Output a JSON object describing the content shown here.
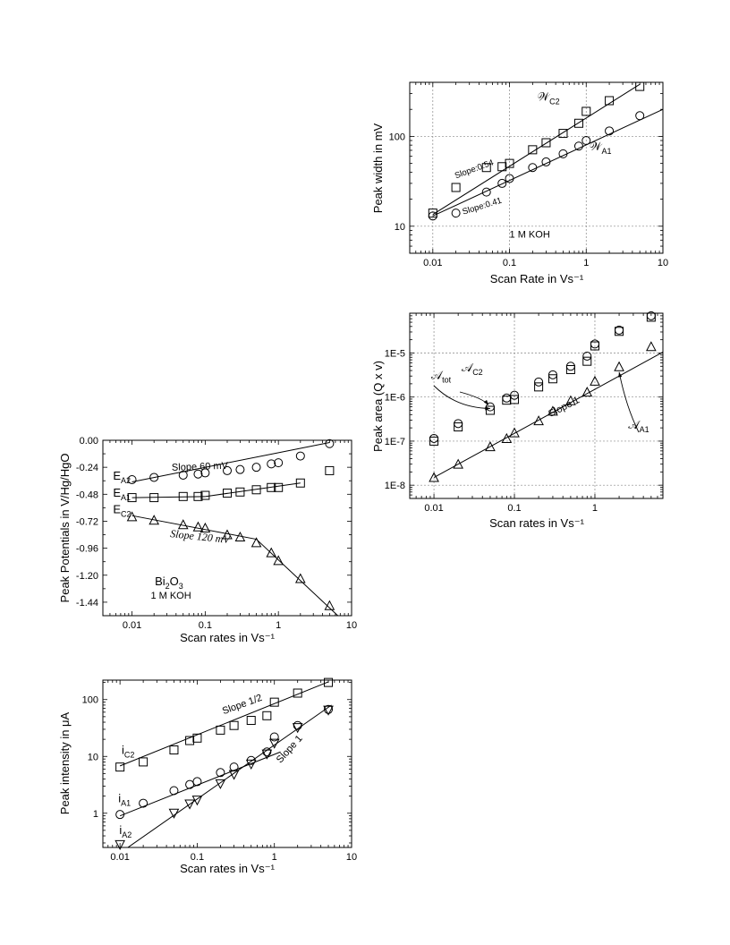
{
  "chart_data": [
    {
      "id": "A",
      "type": "scatter",
      "xscale": "log",
      "yscale": "log",
      "xlim": [
        0.005,
        10
      ],
      "ylim": [
        5,
        400
      ],
      "xticks": [
        0.01,
        0.1,
        1,
        10
      ],
      "xtick_labels": [
        "0.01",
        "0.1",
        "1",
        "10"
      ],
      "yticks": [
        10,
        100
      ],
      "ytick_labels": [
        "10",
        "100"
      ],
      "grid": true,
      "xlabel": "Scan Rate in Vs⁻¹",
      "ylabel": "Peak width in mV",
      "series": [
        {
          "name": "𝒲C2",
          "marker": "square",
          "x": [
            0.01,
            0.02,
            0.05,
            0.08,
            0.1,
            0.2,
            0.3,
            0.5,
            0.8,
            1,
            2,
            5
          ],
          "y": [
            14,
            27,
            45,
            46,
            50,
            71,
            85,
            108,
            140,
            190,
            250,
            360
          ]
        },
        {
          "name": "𝒲A1",
          "marker": "circle",
          "x": [
            0.01,
            0.02,
            0.05,
            0.08,
            0.1,
            0.2,
            0.3,
            0.5,
            0.8,
            1,
            2,
            5
          ],
          "y": [
            13,
            14,
            24,
            30,
            34,
            45,
            52,
            64,
            78,
            90,
            115,
            170
          ]
        }
      ],
      "fits": [
        {
          "x": [
            0.01,
            5
          ],
          "y": [
            13.5,
            380
          ]
        },
        {
          "x": [
            0.01,
            10
          ],
          "y": [
            13,
            200
          ]
        }
      ],
      "annotations": [
        {
          "text": "Slope:0.54",
          "x": 0.02,
          "y": 34,
          "rot": -20,
          "cls": "ann-sm"
        },
        {
          "text": "Slope:0.41",
          "x": 0.025,
          "y": 13.5,
          "rot": -17,
          "cls": "ann-sm"
        },
        {
          "text": "1 M KOH",
          "x": 0.1,
          "y": 7.5,
          "rot": 0,
          "cls": "ann"
        }
      ],
      "labels": [
        {
          "main": "𝒲",
          "sub": "C2",
          "x": 0.23,
          "y": 250
        },
        {
          "main": "𝒲",
          "sub": "A1",
          "x": 1.1,
          "y": 70
        }
      ]
    },
    {
      "id": "B",
      "type": "scatter",
      "xscale": "log",
      "yscale": "log",
      "xlim": [
        0.005,
        7
      ],
      "ylim": [
        5e-09,
        8e-05
      ],
      "xticks": [
        0.01,
        0.1,
        1
      ],
      "xtick_labels": [
        "0.01",
        "0.1",
        "1"
      ],
      "yticks": [
        1e-08,
        1e-07,
        1e-06,
        1e-05
      ],
      "ytick_labels": [
        "1E-8",
        "1E-7",
        "1E-6",
        "1E-5"
      ],
      "grid": true,
      "xlabel": "Scan rates in Vs⁻¹",
      "ylabel": "Peak area (Q x v)",
      "series": [
        {
          "name": "𝒜tot",
          "marker": "circle",
          "x": [
            0.01,
            0.02,
            0.05,
            0.08,
            0.1,
            0.2,
            0.3,
            0.5,
            0.8,
            1,
            2,
            5
          ],
          "y": [
            1.15e-07,
            2.5e-07,
            6e-07,
            9.5e-07,
            1.1e-06,
            2.2e-06,
            3.2e-06,
            5e-06,
            8.5e-06,
            1.6e-05,
            3.3e-05,
            7e-05
          ]
        },
        {
          "name": "𝒜C2",
          "marker": "square",
          "x": [
            0.01,
            0.02,
            0.05,
            0.08,
            0.1,
            0.2,
            0.3,
            0.5,
            0.8,
            1,
            2,
            5
          ],
          "y": [
            1e-07,
            2.1e-07,
            5e-07,
            8.5e-07,
            8.8e-07,
            1.7e-06,
            2.6e-06,
            4.2e-06,
            6.5e-06,
            1.45e-05,
            3.1e-05,
            6.5e-05
          ]
        },
        {
          "name": "𝒜A1",
          "marker": "triangle",
          "x": [
            0.01,
            0.02,
            0.05,
            0.08,
            0.1,
            0.2,
            0.3,
            0.5,
            0.8,
            1,
            2,
            5
          ],
          "y": [
            1.5e-08,
            3e-08,
            7.5e-08,
            1.15e-07,
            1.55e-07,
            2.9e-07,
            4.8e-07,
            8.3e-07,
            1.3e-06,
            2.3e-06,
            4.9e-06,
            1.4e-05
          ]
        }
      ],
      "fits": [
        {
          "x": [
            0.01,
            7
          ],
          "y": [
            1.5e-08,
            1.05e-05
          ]
        }
      ],
      "annotations": [
        {
          "text": "Slope 1",
          "x": 0.28,
          "y": 3.5e-07,
          "rot": -27,
          "cls": "ann"
        }
      ],
      "labels": [
        {
          "main": "𝒜",
          "sub": "tot",
          "x": 0.0092,
          "y": 2.6e-06
        },
        {
          "main": "𝒜",
          "sub": "C2",
          "x": 0.022,
          "y": 3.8e-06
        },
        {
          "main": "𝒜",
          "sub": "A1",
          "x": 2.6,
          "y": 1.9e-07
        }
      ]
    },
    {
      "id": "C",
      "type": "scatter",
      "xscale": "log",
      "yscale": "linear",
      "xlim": [
        0.004,
        10
      ],
      "ylim": [
        -1.56,
        0
      ],
      "xticks": [
        0.01,
        0.1,
        1,
        10
      ],
      "xtick_labels": [
        "0.01",
        "0.1",
        "1",
        "10"
      ],
      "yticks": [
        0,
        -0.24,
        -0.48,
        -0.72,
        -0.96,
        -1.2,
        -1.44
      ],
      "ytick_labels": [
        "0.00",
        "-0.24",
        "-0.48",
        "-0.72",
        "-0.96",
        "-1.20",
        "-1.44"
      ],
      "grid": false,
      "xlabel": "Scan rates in Vs⁻¹",
      "ylabel": "Peak Potentials in V/Hg/HgO",
      "series": [
        {
          "name": "EA2",
          "marker": "circle",
          "x": [
            0.01,
            0.02,
            0.05,
            0.08,
            0.1,
            0.2,
            0.3,
            0.5,
            0.8,
            1,
            2,
            5
          ],
          "y": [
            -0.35,
            -0.33,
            -0.31,
            -0.3,
            -0.29,
            -0.27,
            -0.26,
            -0.24,
            -0.21,
            -0.2,
            -0.14,
            -0.03
          ]
        },
        {
          "name": "EA1",
          "marker": "square",
          "x": [
            0.01,
            0.02,
            0.05,
            0.08,
            0.1,
            0.2,
            0.3,
            0.5,
            0.8,
            1,
            2,
            5
          ],
          "y": [
            -0.51,
            -0.51,
            -0.5,
            -0.5,
            -0.49,
            -0.47,
            -0.46,
            -0.44,
            -0.42,
            -0.42,
            -0.38,
            -0.27
          ]
        },
        {
          "name": "EC2",
          "marker": "triangle",
          "x": [
            0.01,
            0.02,
            0.05,
            0.08,
            0.1,
            0.2,
            0.3,
            0.5,
            0.8,
            1,
            2,
            5
          ],
          "y": [
            -0.68,
            -0.71,
            -0.75,
            -0.77,
            -0.78,
            -0.84,
            -0.86,
            -0.91,
            -1.0,
            -1.07,
            -1.23,
            -1.47
          ]
        }
      ],
      "fits": [
        {
          "x": [
            0.01,
            5
          ],
          "y": [
            -0.37,
            -0.02
          ]
        },
        {
          "x": [
            0.01,
            0.1
          ],
          "y": [
            -0.51,
            -0.5
          ]
        },
        {
          "x": [
            0.1,
            2
          ],
          "y": [
            -0.5,
            -0.38
          ]
        },
        {
          "x": [
            0.01,
            0.5
          ],
          "y": [
            -0.67,
            -0.88
          ]
        },
        {
          "x": [
            0.5,
            7
          ],
          "y": [
            -0.88,
            -1.58
          ]
        }
      ],
      "annotations": [
        {
          "text": "Slope 60 mV",
          "x": 0.035,
          "y": -0.27,
          "rot": -2,
          "cls": "ann"
        },
        {
          "text": "Slope 120 mV",
          "x": 0.033,
          "y": -0.86,
          "rot": 6,
          "cls": "ann-it"
        },
        {
          "text": "1 M KOH",
          "x": 0.018,
          "y": -1.41,
          "rot": 0,
          "cls": "ann"
        }
      ],
      "labels": [
        {
          "main": "E",
          "sub": "A2",
          "x": 0.0055,
          "y": -0.35
        },
        {
          "main": "E",
          "sub": "A1",
          "x": 0.0055,
          "y": -0.5
        },
        {
          "main": "E",
          "sub": "C2",
          "x": 0.0055,
          "y": -0.65
        },
        {
          "main": "Bi",
          "sub": "2",
          "tail": "O",
          "sub2": "3",
          "x": 0.0205,
          "y": -1.29
        }
      ]
    },
    {
      "id": "D",
      "type": "scatter",
      "xscale": "log",
      "yscale": "log",
      "xlim": [
        0.006,
        10
      ],
      "ylim": [
        0.25,
        220
      ],
      "xticks": [
        0.01,
        0.1,
        1,
        10
      ],
      "xtick_labels": [
        "0.01",
        "0.1",
        "1",
        "10"
      ],
      "yticks": [
        1,
        10,
        100
      ],
      "ytick_labels": [
        "1",
        "10",
        "100"
      ],
      "grid": false,
      "xlabel": "Scan rates in Vs⁻¹",
      "ylabel": "Peak intensity in μA",
      "series": [
        {
          "name": "iC2",
          "marker": "square",
          "x": [
            0.01,
            0.02,
            0.05,
            0.08,
            0.1,
            0.2,
            0.3,
            0.5,
            0.8,
            1,
            2,
            5
          ],
          "y": [
            6.5,
            8,
            13,
            19,
            21,
            29,
            35,
            43,
            52,
            90,
            130,
            200
          ]
        },
        {
          "name": "iA1",
          "marker": "circle",
          "x": [
            0.01,
            0.02,
            0.05,
            0.08,
            0.1,
            0.2,
            0.3,
            0.5,
            0.8,
            1,
            2,
            5
          ],
          "y": [
            0.95,
            1.5,
            2.5,
            3.2,
            3.6,
            5.2,
            6.5,
            8.5,
            12,
            22,
            35,
            67
          ]
        },
        {
          "name": "iA2",
          "marker": "triangle-down",
          "x": [
            0.01,
            0.05,
            0.08,
            0.1,
            0.2,
            0.3,
            0.5,
            0.8,
            1,
            2,
            5
          ],
          "y": [
            0.28,
            1.0,
            1.45,
            1.7,
            3.3,
            4.8,
            7.3,
            11,
            17,
            32,
            65
          ]
        }
      ],
      "fits": [
        {
          "x": [
            0.01,
            5
          ],
          "y": [
            6.8,
            205
          ]
        },
        {
          "x": [
            0.01,
            1.2
          ],
          "y": [
            0.9,
            12
          ]
        },
        {
          "x": [
            0.01,
            5.5
          ],
          "y": [
            0.2,
            80
          ]
        }
      ],
      "annotations": [
        {
          "text": "Slope 1/2",
          "x": 0.22,
          "y": 55,
          "rot": -20,
          "cls": "ann"
        },
        {
          "text": "Slope 1",
          "x": 1.2,
          "y": 7.5,
          "rot": -48,
          "cls": "ann"
        }
      ],
      "labels": [
        {
          "main": "i",
          "sub": "C2",
          "x": 0.0105,
          "y": 11
        },
        {
          "main": "i",
          "sub": "A1",
          "x": 0.0095,
          "y": 1.55
        },
        {
          "main": "i",
          "sub": "A2",
          "x": 0.0098,
          "y": 0.43
        }
      ]
    }
  ]
}
